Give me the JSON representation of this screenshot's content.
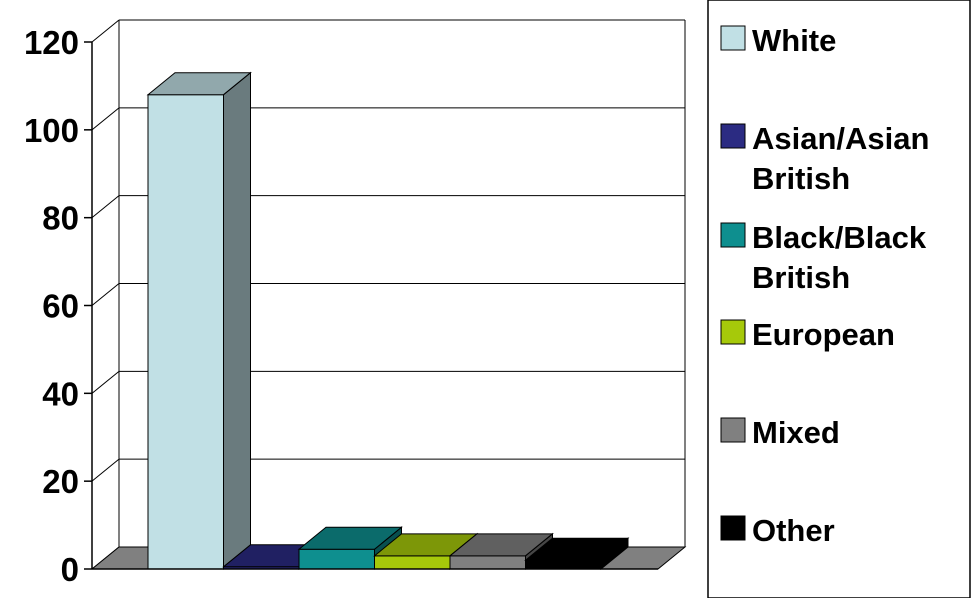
{
  "chart_data": {
    "type": "bar",
    "three_d": true,
    "categories": [
      "White",
      "Asian/Asian British",
      "Black/Black British",
      "European",
      "Mixed",
      "Other"
    ],
    "values": [
      108,
      0.5,
      4.5,
      3,
      3,
      2
    ],
    "ylim": [
      0,
      120
    ],
    "y_ticks": [
      "0",
      "20",
      "40",
      "60",
      "80",
      "100",
      "120"
    ],
    "title": "",
    "xlabel": "",
    "ylabel": "",
    "grid": true,
    "legend_position": "right",
    "legend": [
      {
        "label": "White",
        "color": "#c1e0e5"
      },
      {
        "label": "Asian/Asian British",
        "color": "#2b2b82"
      },
      {
        "label": "Black/Black British",
        "color": "#0e8f8f"
      },
      {
        "label": "European",
        "color": "#a6c90a"
      },
      {
        "label": "Mixed",
        "color": "#808080"
      },
      {
        "label": "Other",
        "color": "#000000"
      }
    ]
  }
}
